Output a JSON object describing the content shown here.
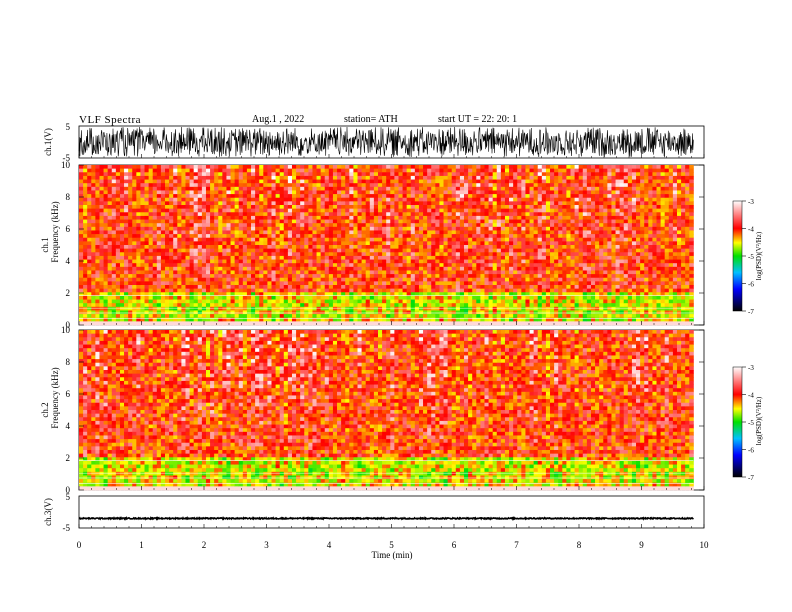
{
  "header": {
    "title": "VLF  Spectra",
    "date": "Aug.1  , 2022",
    "station": "station= ATH",
    "start": "start  UT  =    22: 20: 1"
  },
  "panels": {
    "ch1_wave_label": "ch.1(V)",
    "ch1_spec_label_top": "ch.1",
    "ch1_spec_label_bottom": "Frequency  (kHz)",
    "ch2_spec_label_top": "ch.2",
    "ch2_spec_label_bottom": "Frequency  (kHz)",
    "ch3_wave_label": "ch.3(V)"
  },
  "colorbar": {
    "label": "log(PSD)(V²/Hz)",
    "ticks": [
      "-3",
      "-4",
      "-5",
      "-6",
      "-7"
    ]
  },
  "chart_data": [
    {
      "type": "line",
      "title": "VLF  Spectra",
      "ylabel": "ch.1(V)",
      "ylim": [
        -5,
        5
      ],
      "yticks": [
        "5",
        "-5"
      ],
      "xlim": [
        0,
        10
      ],
      "note_visible": "dense waveform filling most of the range between approx -5 and 5"
    },
    {
      "type": "heatmap",
      "ylabel": "Frequency  (kHz)",
      "ylim": [
        0,
        10
      ],
      "yticks": [
        "10",
        "8",
        "6",
        "4",
        "2",
        "0"
      ],
      "xlim": [
        0,
        10
      ],
      "xrange_data": [
        0,
        9.83
      ],
      "colorscale": {
        "min": -7,
        "max": -3,
        "colors": [
          "#000000",
          "#0000ff",
          "#00c0ff",
          "#00e000",
          "#ffff00",
          "#ff0000",
          "#ffffff"
        ]
      }
    },
    {
      "type": "heatmap",
      "ylabel": "Frequency  (kHz)",
      "ylim": [
        0,
        10
      ],
      "yticks": [
        "10",
        "8",
        "6",
        "4",
        "2",
        "0"
      ],
      "xlim": [
        0,
        10
      ],
      "xrange_data": [
        0,
        9.83
      ],
      "colorscale": {
        "min": -7,
        "max": -3,
        "colors": [
          "#000000",
          "#0000ff",
          "#00c0ff",
          "#00e000",
          "#ffff00",
          "#ff0000",
          "#ffffff"
        ]
      }
    },
    {
      "type": "line",
      "ylabel": "ch.3(V)",
      "ylim": [
        -5,
        5
      ],
      "yticks": [
        "5",
        "-5"
      ],
      "xlim": [
        0,
        10
      ],
      "xlabel": "Time  (min)",
      "xticks": [
        "0",
        "1",
        "2",
        "3",
        "4",
        "5",
        "6",
        "7",
        "8",
        "9",
        "10"
      ],
      "note_visible": "nearly flat trace at about -2"
    }
  ]
}
